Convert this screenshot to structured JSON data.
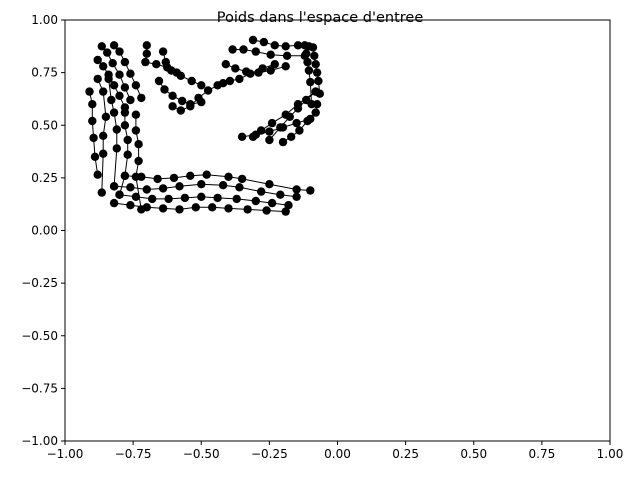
{
  "chart_data": {
    "type": "scatter",
    "title": "Poids dans l'espace d'entree",
    "xlabel": "",
    "ylabel": "",
    "xlim": [
      -1.0,
      1.0
    ],
    "ylim": [
      -1.0,
      1.0
    ],
    "grid": false,
    "x_ticks": [
      "−1.00",
      "−0.75",
      "−0.50",
      "−0.25",
      "0.00",
      "0.25",
      "0.50",
      "0.75",
      "1.00"
    ],
    "y_ticks": [
      "−1.00",
      "−0.75",
      "−0.50",
      "−0.25",
      "0.00",
      "0.25",
      "0.50",
      "0.75",
      "1.00"
    ],
    "x_tick_values": [
      -1.0,
      -0.75,
      -0.5,
      -0.25,
      0.0,
      0.25,
      0.5,
      0.75,
      1.0
    ],
    "y_tick_values": [
      -1.0,
      -0.75,
      -0.5,
      -0.25,
      0.0,
      0.25,
      0.5,
      0.75,
      1.0
    ],
    "marker_color": "#000000",
    "line_color": "#000000",
    "series": [
      {
        "points": [
          [
            -0.865,
            0.875
          ],
          [
            -0.845,
            0.845
          ],
          [
            -0.825,
            0.795
          ],
          [
            -0.8,
            0.74
          ],
          [
            -0.78,
            0.68
          ],
          [
            -0.76,
            0.62
          ]
        ]
      },
      {
        "points": [
          [
            -0.82,
            0.88
          ],
          [
            -0.8,
            0.85
          ],
          [
            -0.78,
            0.8
          ],
          [
            -0.76,
            0.745
          ],
          [
            -0.74,
            0.69
          ],
          [
            -0.72,
            0.63
          ]
        ]
      },
      {
        "points": [
          [
            -0.88,
            0.81
          ],
          [
            -0.86,
            0.78
          ],
          [
            -0.84,
            0.74
          ],
          [
            -0.82,
            0.69
          ],
          [
            -0.8,
            0.64
          ],
          [
            -0.78,
            0.585
          ]
        ]
      },
      {
        "points": [
          [
            -0.7,
            0.88
          ],
          [
            -0.7,
            0.84
          ],
          [
            -0.705,
            0.8
          ],
          [
            -0.665,
            0.79
          ],
          [
            -0.625,
            0.775
          ],
          [
            -0.59,
            0.75
          ]
        ]
      },
      {
        "points": [
          [
            -0.64,
            0.85
          ],
          [
            -0.63,
            0.8
          ],
          [
            -0.61,
            0.76
          ],
          [
            -0.575,
            0.735
          ],
          [
            -0.535,
            0.71
          ],
          [
            -0.5,
            0.69
          ]
        ]
      },
      {
        "points": [
          [
            -0.655,
            0.71
          ],
          [
            -0.635,
            0.67
          ],
          [
            -0.605,
            0.64
          ],
          [
            -0.57,
            0.615
          ],
          [
            -0.54,
            0.6
          ],
          [
            -0.5,
            0.61
          ]
        ]
      },
      {
        "points": [
          [
            -0.605,
            0.59
          ],
          [
            -0.575,
            0.57
          ],
          [
            -0.54,
            0.59
          ],
          [
            -0.51,
            0.63
          ],
          [
            -0.475,
            0.665
          ],
          [
            -0.44,
            0.69
          ]
        ]
      },
      {
        "points": [
          [
            -0.31,
            0.905
          ],
          [
            -0.27,
            0.895
          ],
          [
            -0.23,
            0.88
          ],
          [
            -0.19,
            0.875
          ],
          [
            -0.145,
            0.88
          ],
          [
            -0.105,
            0.875
          ]
        ]
      },
      {
        "points": [
          [
            -0.385,
            0.86
          ],
          [
            -0.345,
            0.86
          ],
          [
            -0.3,
            0.85
          ],
          [
            -0.245,
            0.835
          ],
          [
            -0.185,
            0.83
          ],
          [
            -0.12,
            0.83
          ]
        ]
      },
      {
        "points": [
          [
            -0.41,
            0.79
          ],
          [
            -0.375,
            0.77
          ],
          [
            -0.335,
            0.755
          ],
          [
            -0.29,
            0.75
          ],
          [
            -0.245,
            0.76
          ],
          [
            -0.19,
            0.78
          ]
        ]
      },
      {
        "points": [
          [
            -0.42,
            0.7
          ],
          [
            -0.395,
            0.71
          ],
          [
            -0.36,
            0.72
          ],
          [
            -0.32,
            0.745
          ],
          [
            -0.275,
            0.77
          ],
          [
            -0.23,
            0.79
          ]
        ]
      },
      {
        "points": [
          [
            -0.09,
            0.87
          ],
          [
            -0.085,
            0.83
          ],
          [
            -0.08,
            0.79
          ],
          [
            -0.075,
            0.75
          ],
          [
            -0.07,
            0.71
          ],
          [
            -0.065,
            0.65
          ]
        ]
      },
      {
        "points": [
          [
            -0.12,
            0.88
          ],
          [
            -0.115,
            0.84
          ],
          [
            -0.11,
            0.8
          ],
          [
            -0.105,
            0.76
          ],
          [
            -0.1,
            0.705
          ],
          [
            -0.095,
            0.6
          ]
        ]
      },
      {
        "points": [
          [
            -0.25,
            0.43
          ],
          [
            -0.21,
            0.49
          ],
          [
            -0.175,
            0.54
          ],
          [
            -0.145,
            0.58
          ],
          [
            -0.115,
            0.62
          ],
          [
            -0.08,
            0.66
          ]
        ]
      },
      {
        "points": [
          [
            -0.31,
            0.445
          ],
          [
            -0.28,
            0.475
          ],
          [
            -0.24,
            0.51
          ],
          [
            -0.19,
            0.55
          ],
          [
            -0.145,
            0.6
          ],
          [
            -0.08,
            0.66
          ]
        ]
      },
      {
        "points": [
          [
            -0.35,
            0.445
          ],
          [
            -0.3,
            0.455
          ],
          [
            -0.25,
            0.47
          ],
          [
            -0.2,
            0.49
          ],
          [
            -0.15,
            0.51
          ],
          [
            -0.1,
            0.53
          ]
        ]
      },
      {
        "points": [
          [
            -0.2,
            0.42
          ],
          [
            -0.17,
            0.445
          ],
          [
            -0.14,
            0.475
          ],
          [
            -0.11,
            0.52
          ],
          [
            -0.08,
            0.56
          ],
          [
            -0.075,
            0.6
          ]
        ]
      },
      {
        "points": [
          [
            -0.91,
            0.66
          ],
          [
            -0.9,
            0.6
          ],
          [
            -0.9,
            0.52
          ],
          [
            -0.895,
            0.44
          ],
          [
            -0.89,
            0.35
          ],
          [
            -0.88,
            0.265
          ]
        ]
      },
      {
        "points": [
          [
            -0.88,
            0.72
          ],
          [
            -0.86,
            0.66
          ],
          [
            -0.85,
            0.54
          ],
          [
            -0.86,
            0.45
          ],
          [
            -0.86,
            0.365
          ],
          [
            -0.865,
            0.18
          ]
        ]
      },
      {
        "points": [
          [
            -0.84,
            0.72
          ],
          [
            -0.83,
            0.62
          ],
          [
            -0.82,
            0.56
          ],
          [
            -0.81,
            0.48
          ],
          [
            -0.81,
            0.39
          ],
          [
            -0.82,
            0.21
          ]
        ]
      },
      {
        "points": [
          [
            -0.78,
            0.56
          ],
          [
            -0.78,
            0.5
          ],
          [
            -0.77,
            0.43
          ],
          [
            -0.77,
            0.36
          ],
          [
            -0.78,
            0.26
          ],
          [
            -0.8,
            0.17
          ]
        ]
      },
      {
        "points": [
          [
            -0.74,
            0.55
          ],
          [
            -0.74,
            0.475
          ],
          [
            -0.73,
            0.41
          ],
          [
            -0.73,
            0.33
          ],
          [
            -0.74,
            0.255
          ],
          [
            -0.72,
            0.1
          ]
        ]
      },
      {
        "points": [
          [
            -0.78,
            0.26
          ],
          [
            -0.72,
            0.255
          ],
          [
            -0.66,
            0.245
          ],
          [
            -0.6,
            0.25
          ],
          [
            -0.54,
            0.26
          ],
          [
            -0.48,
            0.265
          ],
          [
            -0.4,
            0.255
          ],
          [
            -0.35,
            0.245
          ],
          [
            -0.25,
            0.22
          ],
          [
            -0.15,
            0.195
          ],
          [
            -0.1,
            0.19
          ]
        ]
      },
      {
        "points": [
          [
            -0.82,
            0.21
          ],
          [
            -0.76,
            0.205
          ],
          [
            -0.7,
            0.195
          ],
          [
            -0.64,
            0.2
          ],
          [
            -0.58,
            0.21
          ],
          [
            -0.5,
            0.22
          ],
          [
            -0.42,
            0.215
          ],
          [
            -0.36,
            0.205
          ],
          [
            -0.28,
            0.185
          ],
          [
            -0.21,
            0.17
          ],
          [
            -0.15,
            0.16
          ]
        ]
      },
      {
        "points": [
          [
            -0.8,
            0.17
          ],
          [
            -0.74,
            0.16
          ],
          [
            -0.68,
            0.15
          ],
          [
            -0.62,
            0.15
          ],
          [
            -0.56,
            0.155
          ],
          [
            -0.5,
            0.16
          ],
          [
            -0.44,
            0.155
          ],
          [
            -0.37,
            0.15
          ],
          [
            -0.3,
            0.14
          ],
          [
            -0.24,
            0.13
          ],
          [
            -0.18,
            0.12
          ]
        ]
      },
      {
        "points": [
          [
            -0.82,
            0.13
          ],
          [
            -0.76,
            0.12
          ],
          [
            -0.7,
            0.11
          ],
          [
            -0.64,
            0.105
          ],
          [
            -0.58,
            0.1
          ],
          [
            -0.52,
            0.11
          ],
          [
            -0.46,
            0.11
          ],
          [
            -0.4,
            0.105
          ],
          [
            -0.33,
            0.1
          ],
          [
            -0.26,
            0.095
          ],
          [
            -0.19,
            0.09
          ]
        ]
      }
    ]
  }
}
